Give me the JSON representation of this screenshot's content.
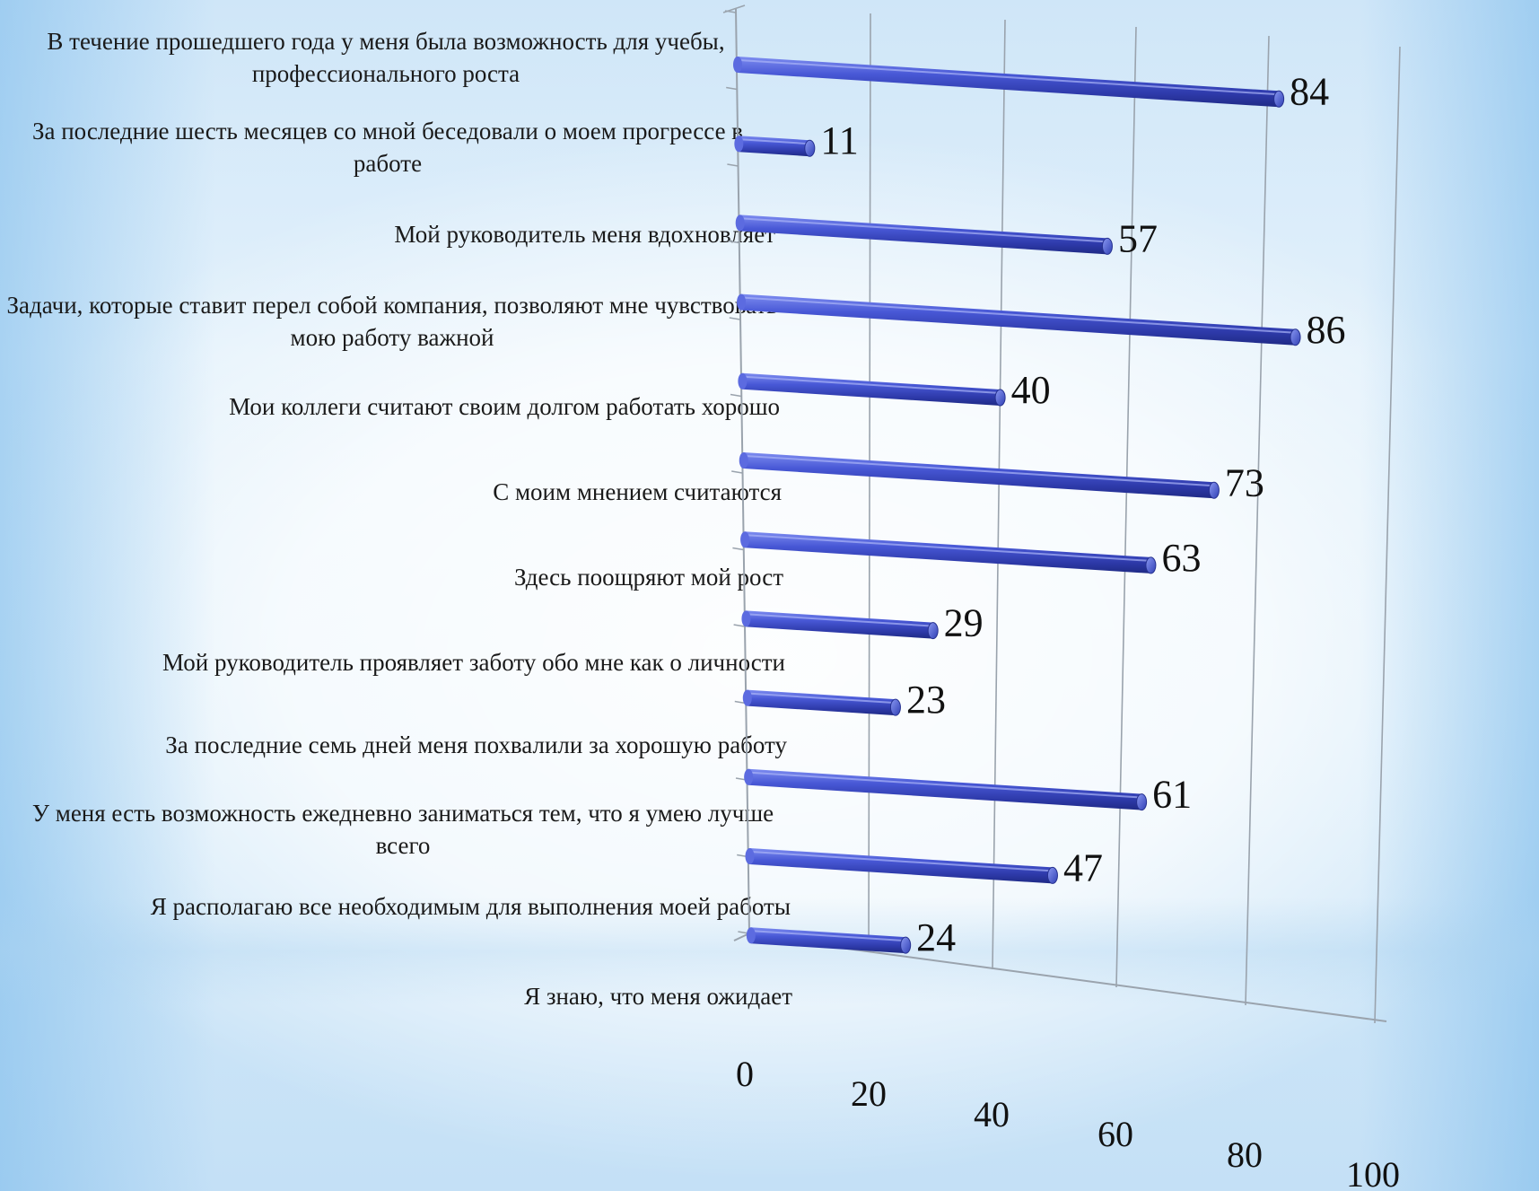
{
  "chart_data": {
    "type": "bar",
    "orientation": "horizontal",
    "categories": [
      "В течение прошедшего года у меня была возможность для учебы, профессионального роста",
      "За последние шесть месяцев со мной беседовали о моем прогрессе в работе",
      "Мой руководитель меня вдохновляет",
      "Задачи, которые ставит перел собой компания, позволяют  мне чувствовать мою работу важной",
      "Мои коллеги считают своим долгом работать хорошо",
      "С моим мнением считаются",
      "Здесь поощряют мой  рост",
      "Мой руководитель проявляет заботу обо мне как о личности",
      "За последние семь дней меня похвалили за хорошую работу",
      "У меня есть возможность ежедневно заниматься тем, что я умею лучше всего",
      "Я располагаю все необходимым для выполнения моей работы",
      "Я знаю, что меня ожидает"
    ],
    "values": [
      84,
      11,
      57,
      86,
      40,
      73,
      63,
      29,
      23,
      61,
      47,
      24
    ],
    "xlim": [
      0,
      100
    ],
    "xticks": [
      "0",
      "20",
      "40",
      "60",
      "80",
      "100"
    ],
    "grid": true,
    "bar_color": "#3f4fcf"
  }
}
